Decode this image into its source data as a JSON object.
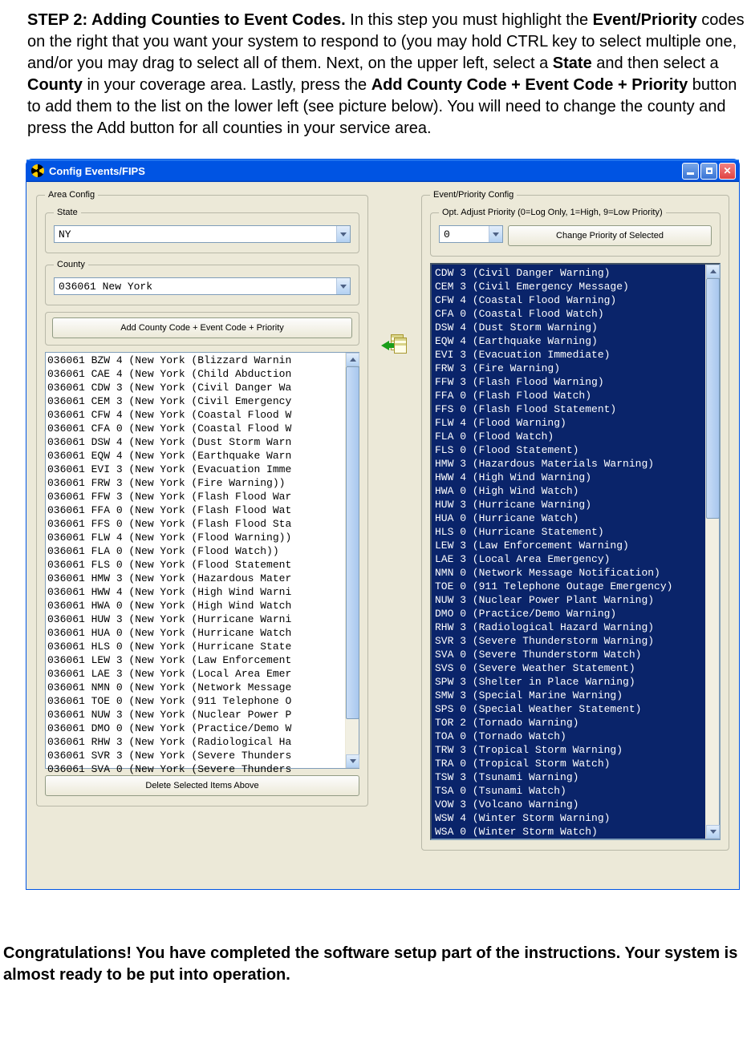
{
  "step": {
    "prefix": "STEP 2:  Adding Counties to Event Codes.",
    "body1": "   In this step you must highlight the ",
    "bold1": "Event/Priority",
    "body2": " codes on the right that you want your system to respond to (you may hold CTRL key to select multiple one, and/or you may drag to select all of them.  Next, on the upper left, select a ",
    "bold2": "State",
    "body3": " and then select a ",
    "bold3": "County",
    "body4": " in your coverage area.  Lastly, press the ",
    "bold4": "Add County Code + Event Code + Priority",
    "body5": " button to add them to the list on the lower left (see picture below).  You will need to change the county and press the Add button for all counties in your service area."
  },
  "window": {
    "title": "Config Events/FIPS"
  },
  "area": {
    "legend": "Area Config",
    "state_legend": "State",
    "state_value": "NY",
    "county_legend": "County",
    "county_value": "036061 New York",
    "add_button": "Add County Code + Event Code + Priority",
    "delete_button": "Delete Selected Items Above",
    "assigned": [
      "036061 BZW 4 (New York (Blizzard Warnin",
      "036061 CAE 4 (New York (Child Abduction",
      "036061 CDW 3 (New York (Civil Danger Wa",
      "036061 CEM 3 (New York (Civil Emergency",
      "036061 CFW 4 (New York (Coastal Flood W",
      "036061 CFA 0 (New York (Coastal Flood W",
      "036061 DSW 4 (New York (Dust Storm Warn",
      "036061 EQW 4 (New York (Earthquake Warn",
      "036061 EVI 3 (New York (Evacuation Imme",
      "036061 FRW 3 (New York (Fire Warning))",
      "036061 FFW 3 (New York (Flash Flood War",
      "036061 FFA 0 (New York (Flash Flood Wat",
      "036061 FFS 0 (New York (Flash Flood Sta",
      "036061 FLW 4 (New York (Flood Warning))",
      "036061 FLA 0 (New York (Flood Watch))",
      "036061 FLS 0 (New York (Flood Statement",
      "036061 HMW 3 (New York (Hazardous Mater",
      "036061 HWW 4 (New York (High Wind Warni",
      "036061 HWA 0 (New York (High Wind Watch",
      "036061 HUW 3 (New York (Hurricane Warni",
      "036061 HUA 0 (New York (Hurricane Watch",
      "036061 HLS 0 (New York (Hurricane State",
      "036061 LEW 3 (New York (Law Enforcement",
      "036061 LAE 3 (New York (Local Area Emer",
      "036061 NMN 0 (New York (Network Message",
      "036061 TOE 0 (New York (911 Telephone O",
      "036061 NUW 3 (New York (Nuclear Power P",
      "036061 DMO 0 (New York (Practice/Demo W",
      "036061 RHW 3 (New York (Radiological Ha",
      "036061 SVR 3 (New York (Severe Thunders",
      "036061 SVA 0 (New York (Severe Thunders"
    ]
  },
  "eventconf": {
    "legend": "Event/Priority Config",
    "priority_legend": "Opt. Adjust Priority (0=Log Only, 1=High, 9=Low Priority)",
    "priority_value": "0",
    "change_button": "Change Priority of Selected",
    "events": [
      "CDW 3 (Civil Danger Warning)",
      "CEM 3 (Civil Emergency Message)",
      "CFW 4 (Coastal Flood Warning)",
      "CFA 0 (Coastal Flood Watch)",
      "DSW 4 (Dust Storm Warning)",
      "EQW 4 (Earthquake Warning)",
      "EVI 3 (Evacuation Immediate)",
      "FRW 3 (Fire Warning)",
      "FFW 3 (Flash Flood Warning)",
      "FFA 0 (Flash Flood Watch)",
      "FFS 0 (Flash Flood Statement)",
      "FLW 4 (Flood Warning)",
      "FLA 0 (Flood Watch)",
      "FLS 0 (Flood Statement)",
      "HMW 3 (Hazardous Materials Warning)",
      "HWW 4 (High Wind Warning)",
      "HWA 0 (High Wind Watch)",
      "HUW 3 (Hurricane Warning)",
      "HUA 0 (Hurricane Watch)",
      "HLS 0 (Hurricane Statement)",
      "LEW 3 (Law Enforcement Warning)",
      "LAE 3 (Local Area Emergency)",
      "NMN 0 (Network Message Notification)",
      "TOE 0 (911 Telephone Outage Emergency)",
      "NUW 3 (Nuclear Power Plant Warning)",
      "DMO 0 (Practice/Demo Warning)",
      "RHW 3 (Radiological Hazard Warning)",
      "SVR 3 (Severe Thunderstorm Warning)",
      "SVA 0 (Severe Thunderstorm Watch)",
      "SVS 0 (Severe Weather Statement)",
      "SPW 3 (Shelter in Place Warning)",
      "SMW 3 (Special Marine Warning)",
      "SPS 0 (Special Weather Statement)",
      "TOR 2 (Tornado Warning)",
      "TOA 0 (Tornado Watch)",
      "TRW 3 (Tropical Storm Warning)",
      "TRA 0 (Tropical Storm Watch)",
      "TSW 3 (Tsunami Warning)",
      "TSA 0 (Tsunami Watch)",
      "VOW 3 (Volcano Warning)",
      "WSW 4 (Winter Storm Warning)",
      "WSA 0 (Winter Storm Watch)"
    ]
  },
  "footer": "Congratulations!  You have completed the software setup part of the instructions.  Your system is almost ready to be put into operation."
}
